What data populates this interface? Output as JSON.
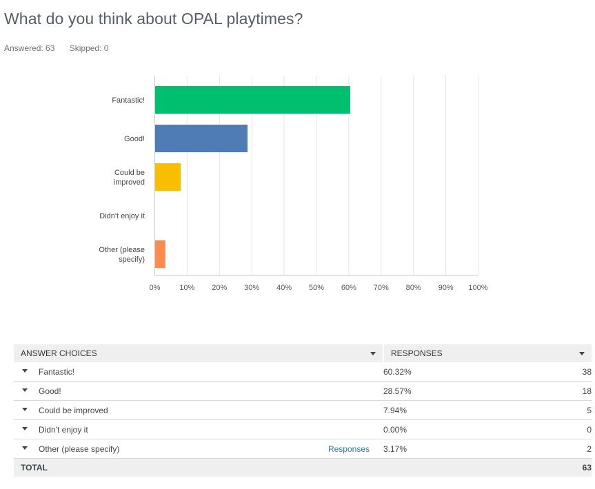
{
  "question": {
    "title": "What do you think about OPAL playtimes?",
    "answered_label": "Answered: 63",
    "skipped_label": "Skipped: 0"
  },
  "chart_data": {
    "type": "bar",
    "orientation": "horizontal",
    "title": "What do you think about OPAL playtimes?",
    "categories": [
      [
        "Fantastic!"
      ],
      [
        "Good!"
      ],
      [
        "Could be",
        "improved"
      ],
      [
        "Didn't enjoy it"
      ],
      [
        "Other (please",
        "specify)"
      ]
    ],
    "category_names": [
      "Fantastic!",
      "Good!",
      "Could be improved",
      "Didn't enjoy it",
      "Other (please specify)"
    ],
    "values": [
      60.32,
      28.57,
      7.94,
      0.0,
      3.17
    ],
    "colors": [
      "#00bf6f",
      "#507cb6",
      "#f9be00",
      "#6bc8cd",
      "#ff8b4f"
    ],
    "xlim": [
      0,
      100
    ],
    "xticks": [
      "0%",
      "10%",
      "20%",
      "30%",
      "40%",
      "50%",
      "60%",
      "70%",
      "80%",
      "90%",
      "100%"
    ],
    "xlabel": "",
    "ylabel": "",
    "grid": true
  },
  "table": {
    "headers": {
      "answer_choices": "ANSWER CHOICES",
      "responses": "RESPONSES"
    },
    "rows": [
      {
        "label": "Fantastic!",
        "percent": "60.32%",
        "count": "38",
        "link": ""
      },
      {
        "label": "Good!",
        "percent": "28.57%",
        "count": "18",
        "link": ""
      },
      {
        "label": "Could be improved",
        "percent": "7.94%",
        "count": "5",
        "link": ""
      },
      {
        "label": "Didn't enjoy it",
        "percent": "0.00%",
        "count": "0",
        "link": ""
      },
      {
        "label": "Other (please specify)",
        "percent": "3.17%",
        "count": "2",
        "link": "Responses"
      }
    ],
    "total": {
      "label": "TOTAL",
      "count": "63"
    }
  }
}
